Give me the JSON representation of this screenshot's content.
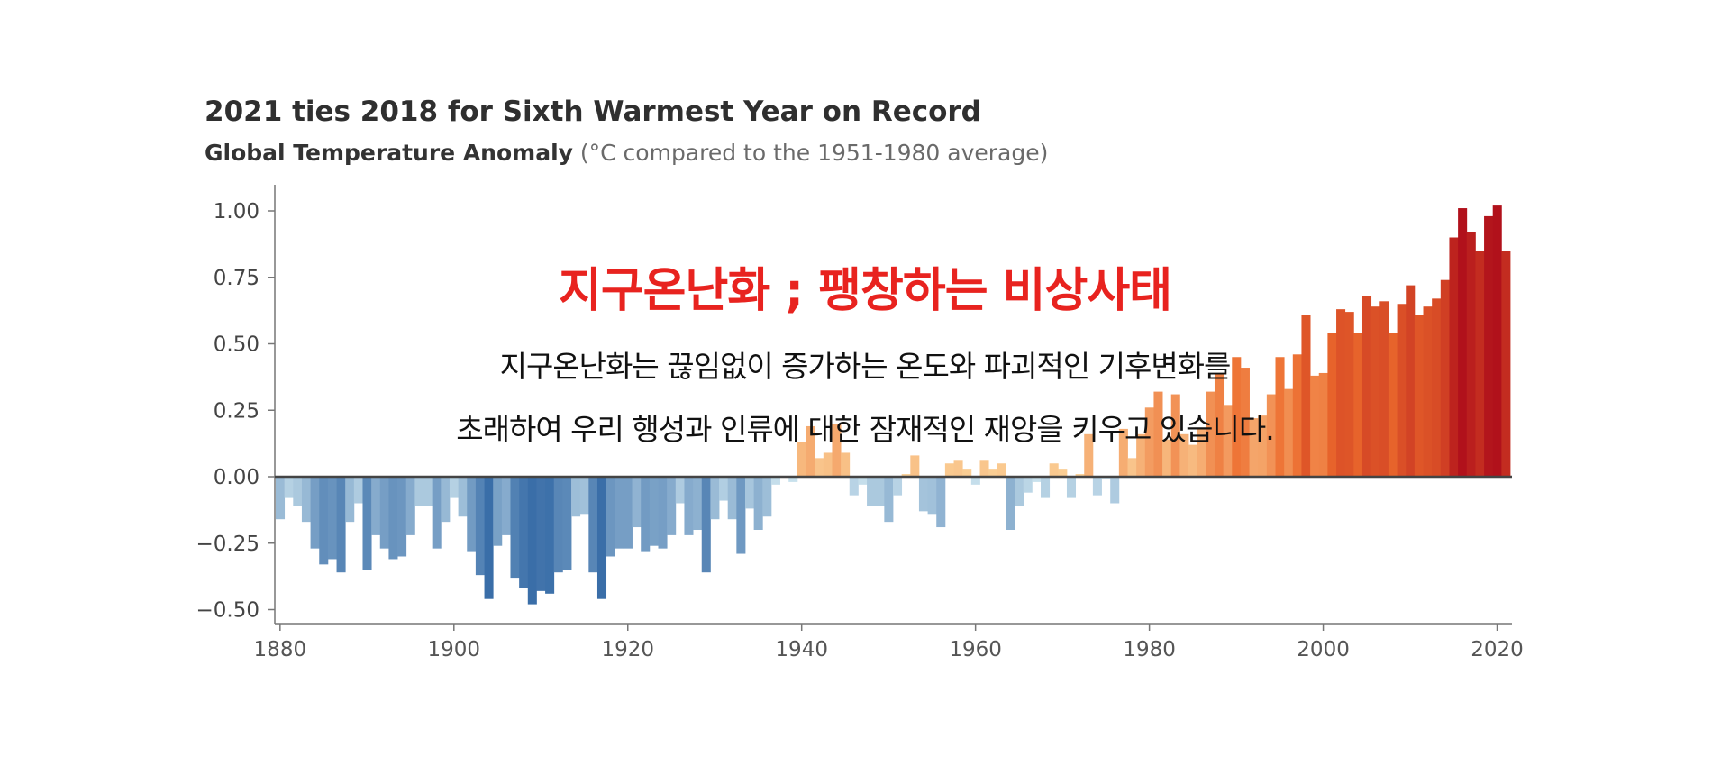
{
  "chart_data": {
    "type": "bar",
    "title": "2021 ties 2018 for Sixth Warmest Year on Record",
    "subtitle_bold": "Global Temperature Anomaly",
    "subtitle_rest": "(°C compared to the 1951-1980 average)",
    "xlabel": "",
    "ylabel": "",
    "xlim": [
      1880,
      2021
    ],
    "ylim": [
      -0.55,
      1.05
    ],
    "yticks": [
      "1.00",
      "0.75",
      "0.50",
      "0.25",
      "0.00",
      "−0.25",
      "−0.50"
    ],
    "ytick_values": [
      1.0,
      0.75,
      0.5,
      0.25,
      0.0,
      -0.25,
      -0.5
    ],
    "xticks": [
      "1880",
      "1900",
      "1920",
      "1940",
      "1960",
      "1980",
      "2000",
      "2020"
    ],
    "xtick_values": [
      1880,
      1900,
      1920,
      1940,
      1960,
      1980,
      2000,
      2020
    ],
    "grid": false,
    "colors": {
      "cold_dark": "#3a6ea8",
      "cold_light": "#cfe6f0",
      "warm_light": "#fbd39a",
      "warm_dark": "#b1111b",
      "zero_line": "#444444",
      "axis": "#777777"
    },
    "years": [
      1880,
      1881,
      1882,
      1883,
      1884,
      1885,
      1886,
      1887,
      1888,
      1889,
      1890,
      1891,
      1892,
      1893,
      1894,
      1895,
      1896,
      1897,
      1898,
      1899,
      1900,
      1901,
      1902,
      1903,
      1904,
      1905,
      1906,
      1907,
      1908,
      1909,
      1910,
      1911,
      1912,
      1913,
      1914,
      1915,
      1916,
      1917,
      1918,
      1919,
      1920,
      1921,
      1922,
      1923,
      1924,
      1925,
      1926,
      1927,
      1928,
      1929,
      1930,
      1931,
      1932,
      1933,
      1934,
      1935,
      1936,
      1937,
      1938,
      1939,
      1940,
      1941,
      1942,
      1943,
      1944,
      1945,
      1946,
      1947,
      1948,
      1949,
      1950,
      1951,
      1952,
      1953,
      1954,
      1955,
      1956,
      1957,
      1958,
      1959,
      1960,
      1961,
      1962,
      1963,
      1964,
      1965,
      1966,
      1967,
      1968,
      1969,
      1970,
      1971,
      1972,
      1973,
      1974,
      1975,
      1976,
      1977,
      1978,
      1979,
      1980,
      1981,
      1982,
      1983,
      1984,
      1985,
      1986,
      1987,
      1988,
      1989,
      1990,
      1991,
      1992,
      1993,
      1994,
      1995,
      1996,
      1997,
      1998,
      1999,
      2000,
      2001,
      2002,
      2003,
      2004,
      2005,
      2006,
      2007,
      2008,
      2009,
      2010,
      2011,
      2012,
      2013,
      2014,
      2015,
      2016,
      2017,
      2018,
      2019,
      2020,
      2021
    ],
    "values": [
      -0.16,
      -0.08,
      -0.11,
      -0.17,
      -0.27,
      -0.33,
      -0.31,
      -0.36,
      -0.17,
      -0.1,
      -0.35,
      -0.22,
      -0.27,
      -0.31,
      -0.3,
      -0.22,
      -0.11,
      -0.11,
      -0.27,
      -0.17,
      -0.08,
      -0.15,
      -0.28,
      -0.37,
      -0.46,
      -0.26,
      -0.22,
      -0.38,
      -0.42,
      -0.48,
      -0.43,
      -0.44,
      -0.36,
      -0.35,
      -0.15,
      -0.14,
      -0.36,
      -0.46,
      -0.3,
      -0.27,
      -0.27,
      -0.19,
      -0.28,
      -0.26,
      -0.27,
      -0.22,
      -0.1,
      -0.22,
      -0.2,
      -0.36,
      -0.16,
      -0.09,
      -0.16,
      -0.29,
      -0.12,
      -0.2,
      -0.15,
      -0.03,
      -0.0,
      -0.02,
      0.13,
      0.19,
      0.07,
      0.09,
      0.2,
      0.09,
      -0.07,
      -0.03,
      -0.11,
      -0.11,
      -0.17,
      -0.07,
      0.01,
      0.08,
      -0.13,
      -0.14,
      -0.19,
      0.05,
      0.06,
      0.03,
      -0.03,
      0.06,
      0.03,
      0.05,
      -0.2,
      -0.11,
      -0.06,
      -0.02,
      -0.08,
      0.05,
      0.03,
      -0.08,
      0.01,
      0.16,
      -0.07,
      -0.01,
      -0.1,
      0.18,
      0.07,
      0.16,
      0.26,
      0.32,
      0.14,
      0.31,
      0.16,
      0.12,
      0.18,
      0.32,
      0.39,
      0.27,
      0.45,
      0.41,
      0.22,
      0.23,
      0.31,
      0.45,
      0.33,
      0.46,
      0.61,
      0.38,
      0.39,
      0.54,
      0.63,
      0.62,
      0.54,
      0.68,
      0.64,
      0.66,
      0.54,
      0.65,
      0.72,
      0.61,
      0.64,
      0.67,
      0.74,
      0.9,
      1.01,
      0.92,
      0.85,
      0.98,
      1.02,
      0.85
    ]
  },
  "overlay": {
    "heading": "지구온난화 ; 팽창하는 비상사태",
    "line_1": "지구온난화는 끊임없이 증가하는 온도와 파괴적인 기후변화를",
    "line_2": "초래하여 우리 행성과 인류에 대한 잠재적인 재앙을 키우고 있습니다."
  }
}
